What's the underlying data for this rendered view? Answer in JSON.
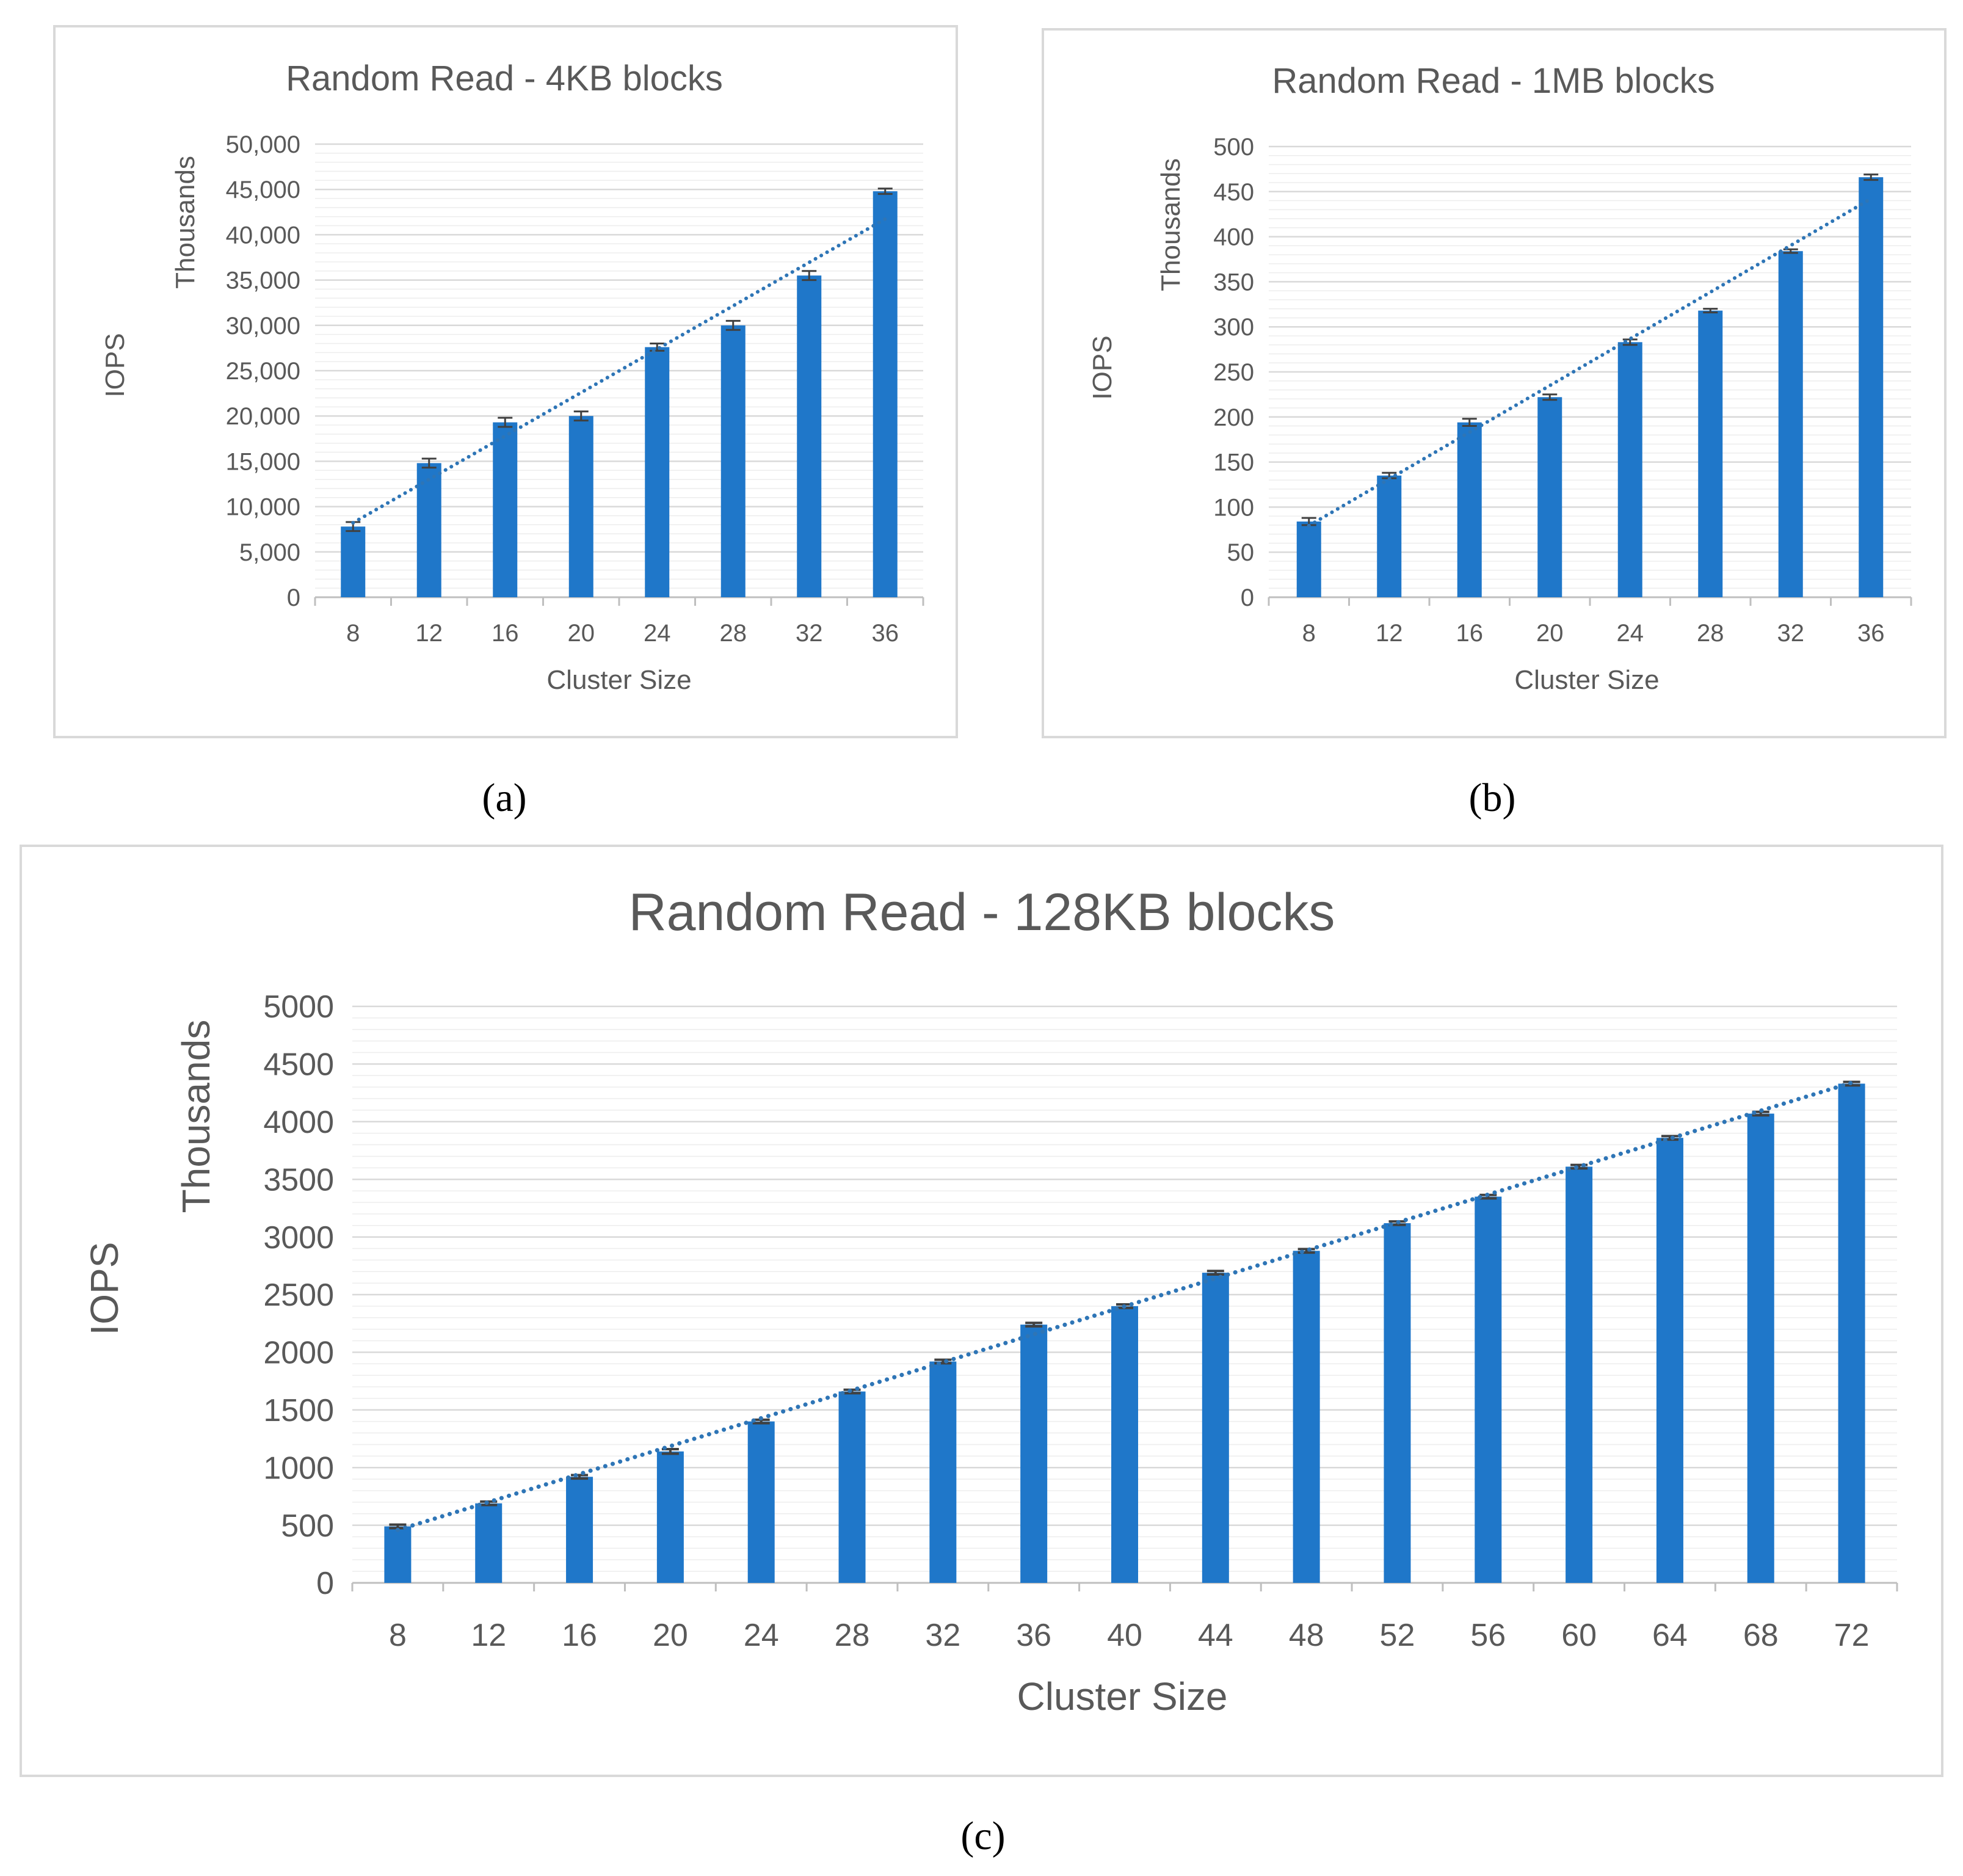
{
  "colors": {
    "bar": "#1F77C9",
    "trend": "#2E75B6",
    "grid": "#D9D9D9",
    "axis_text": "#595959",
    "title_text": "#595959",
    "errorbar": "#404040",
    "frame": "#D9D9D9",
    "caption": "#000000"
  },
  "panels": [
    {
      "caption": "(a)",
      "chart_data": {
        "type": "bar",
        "title": "Random Read - 4KB blocks",
        "xlabel": "Cluster Size",
        "ylabel": "IOPS",
        "y_unit_label": "Thousands",
        "categories": [
          "8",
          "12",
          "16",
          "20",
          "24",
          "28",
          "32",
          "36"
        ],
        "values": [
          7800,
          14800,
          19300,
          20000,
          27600,
          30000,
          35500,
          44800
        ],
        "errors": [
          500,
          500,
          500,
          500,
          400,
          500,
          500,
          300
        ],
        "ylim": [
          0,
          50000
        ],
        "yticks": [
          0,
          5000,
          10000,
          15000,
          20000,
          25000,
          30000,
          35000,
          40000,
          45000,
          50000
        ],
        "yticklabels": [
          "0",
          "5,000",
          "10,000",
          "15,000",
          "20,000",
          "25,000",
          "30,000",
          "35,000",
          "40,000",
          "45,000",
          "50,000"
        ],
        "minor_gridlines": 4,
        "trendline": "linear",
        "grid": true,
        "legend": "none"
      }
    },
    {
      "caption": "(b)",
      "chart_data": {
        "type": "bar",
        "title": "Random Read - 1MB blocks",
        "xlabel": "Cluster Size",
        "ylabel": "IOPS",
        "y_unit_label": "Thousands",
        "categories": [
          "8",
          "12",
          "16",
          "20",
          "24",
          "28",
          "32",
          "36"
        ],
        "values": [
          84,
          135,
          194,
          222,
          283,
          318,
          384,
          466
        ],
        "errors": [
          4,
          3,
          4,
          3,
          3,
          2,
          2,
          3
        ],
        "ylim": [
          0,
          500
        ],
        "yticks": [
          0,
          50,
          100,
          150,
          200,
          250,
          300,
          350,
          400,
          450,
          500
        ],
        "yticklabels": [
          "0",
          "50",
          "100",
          "150",
          "200",
          "250",
          "300",
          "350",
          "400",
          "450",
          "500"
        ],
        "minor_gridlines": 4,
        "trendline": "linear",
        "grid": true,
        "legend": "none"
      }
    },
    {
      "caption": "(c)",
      "chart_data": {
        "type": "bar",
        "title": "Random Read - 128KB blocks",
        "xlabel": "Cluster Size",
        "ylabel": "IOPS",
        "y_unit_label": "Thousands",
        "categories": [
          "8",
          "12",
          "16",
          "20",
          "24",
          "28",
          "32",
          "36",
          "40",
          "44",
          "48",
          "52",
          "56",
          "60",
          "64",
          "68",
          "72"
        ],
        "values": [
          490,
          690,
          920,
          1140,
          1400,
          1660,
          1920,
          2240,
          2400,
          2690,
          2880,
          3120,
          3350,
          3610,
          3860,
          4070,
          4330
        ],
        "errors": [
          15,
          15,
          15,
          20,
          15,
          15,
          15,
          15,
          15,
          15,
          15,
          15,
          15,
          15,
          15,
          15,
          15
        ],
        "ylim": [
          0,
          5000
        ],
        "yticks": [
          0,
          500,
          1000,
          1500,
          2000,
          2500,
          3000,
          3500,
          4000,
          4500,
          5000
        ],
        "yticklabels": [
          "0",
          "500",
          "1000",
          "1500",
          "2000",
          "2500",
          "3000",
          "3500",
          "4000",
          "4500",
          "5000"
        ],
        "minor_gridlines": 4,
        "trendline": "linear",
        "grid": true,
        "legend": "none"
      }
    }
  ]
}
